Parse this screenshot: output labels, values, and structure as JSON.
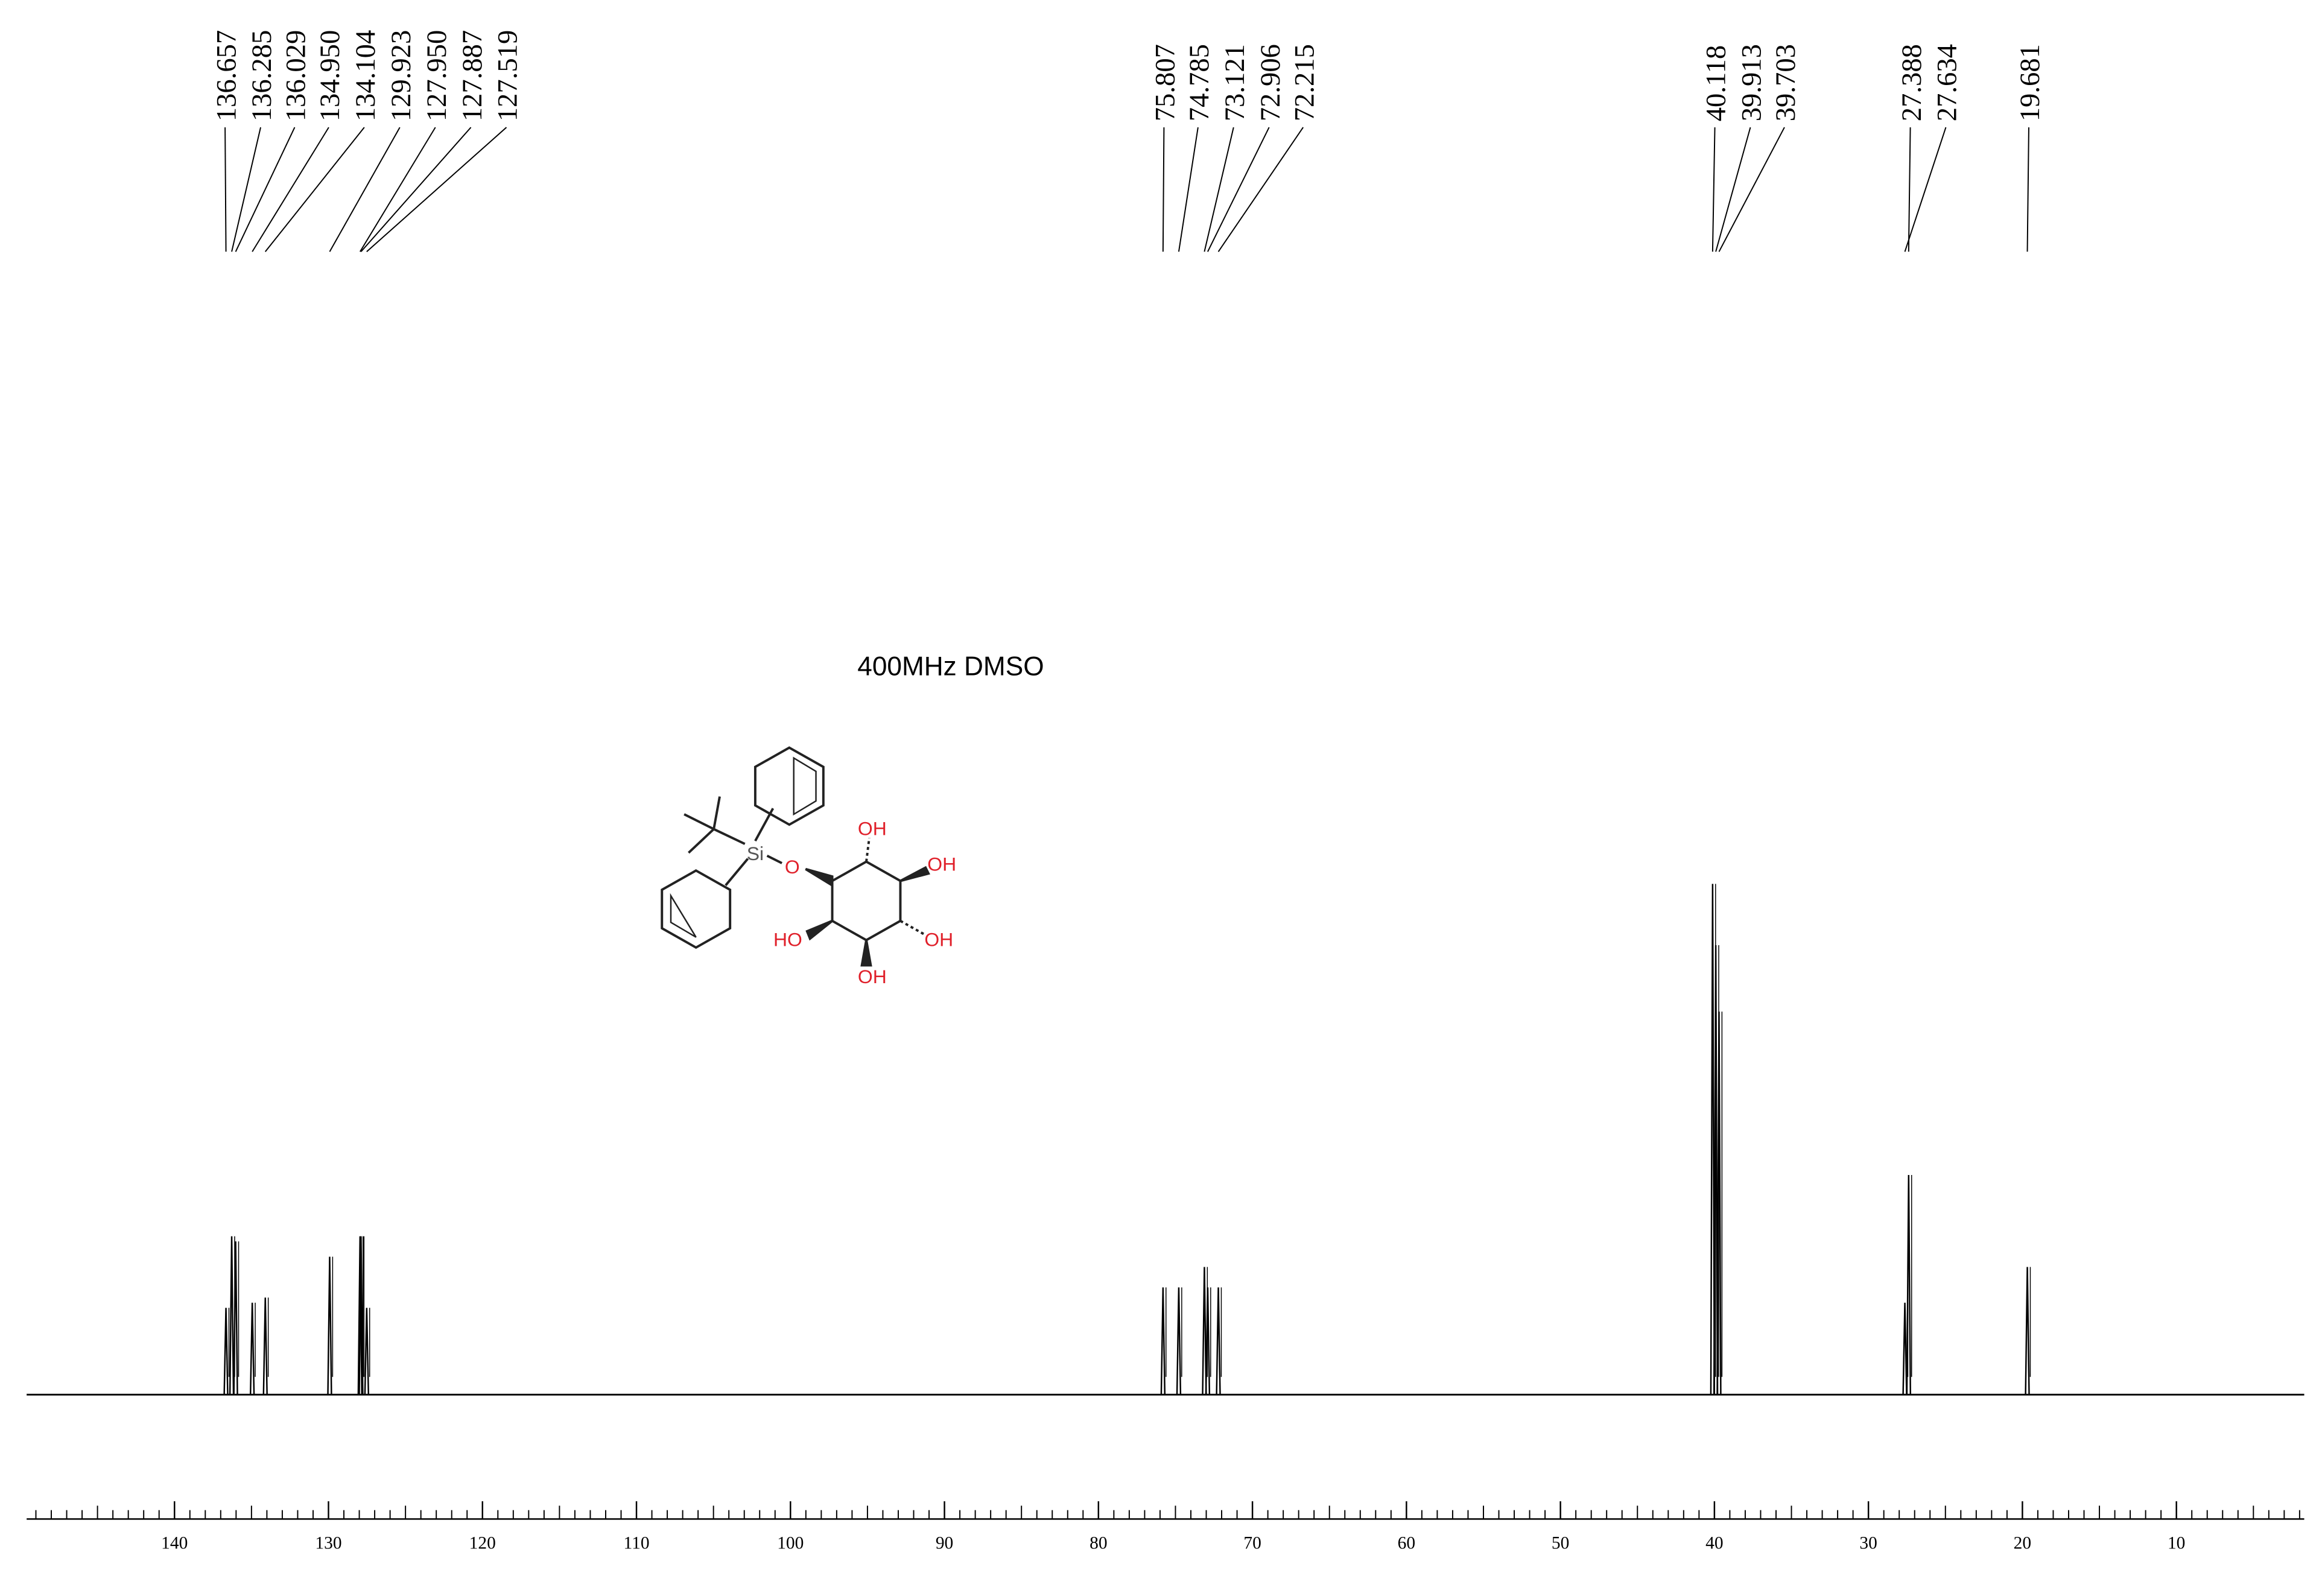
{
  "chart_data": {
    "type": "spectrum",
    "annotation": "400MHz DMSO",
    "x": [
      136.657,
      136.285,
      136.029,
      134.95,
      134.104,
      129.923,
      127.95,
      127.887,
      127.519,
      75.807,
      74.785,
      73.121,
      72.906,
      72.215,
      40.118,
      39.913,
      39.703,
      27.388,
      27.634,
      19.681
    ],
    "x_labels": [
      "136.657",
      "136.285",
      "136.029",
      "134.950",
      "134.104",
      "129.923",
      "127.950",
      "127.887",
      "127.519",
      "75.807",
      "74.785",
      "73.121",
      "72.906",
      "72.215",
      "40.118",
      "39.913",
      "39.703",
      "27.388",
      "27.634",
      "19.681"
    ],
    "values": [
      17,
      31,
      30,
      18,
      19,
      27,
      31,
      31,
      17,
      21,
      21,
      25,
      21,
      21,
      100,
      88,
      75,
      43,
      18,
      25
    ],
    "xlim": [
      149.6,
      1.7
    ],
    "xticks": [
      140,
      130,
      120,
      110,
      100,
      90,
      80,
      70,
      60,
      50,
      40,
      30,
      20,
      10
    ],
    "xminor_step": 1,
    "color": "#000000",
    "molecule": {
      "atoms": [
        "Si",
        "O",
        "OH",
        "OH",
        "OH",
        "OH",
        "HO"
      ]
    }
  }
}
